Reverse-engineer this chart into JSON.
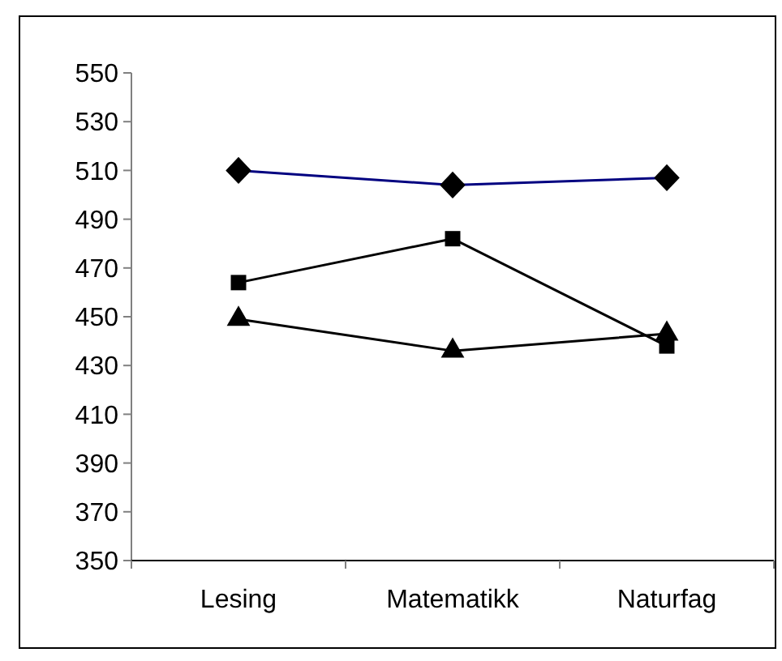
{
  "chart_data": {
    "type": "line",
    "categories": [
      "Lesing",
      "Matematikk",
      "Naturfag"
    ],
    "series": [
      {
        "color": "#000080",
        "values": [
          510,
          504,
          507
        ],
        "marker": "diamond"
      },
      {
        "color": "#000000",
        "values": [
          464,
          482,
          438
        ],
        "marker": "square"
      },
      {
        "color": "#000000",
        "values": [
          449,
          436,
          443
        ],
        "marker": "triangle"
      }
    ],
    "ylim": [
      350,
      550
    ],
    "yticks": [
      350,
      370,
      390,
      410,
      430,
      450,
      470,
      490,
      510,
      530,
      550
    ],
    "grid": false,
    "line_style": "solid"
  }
}
